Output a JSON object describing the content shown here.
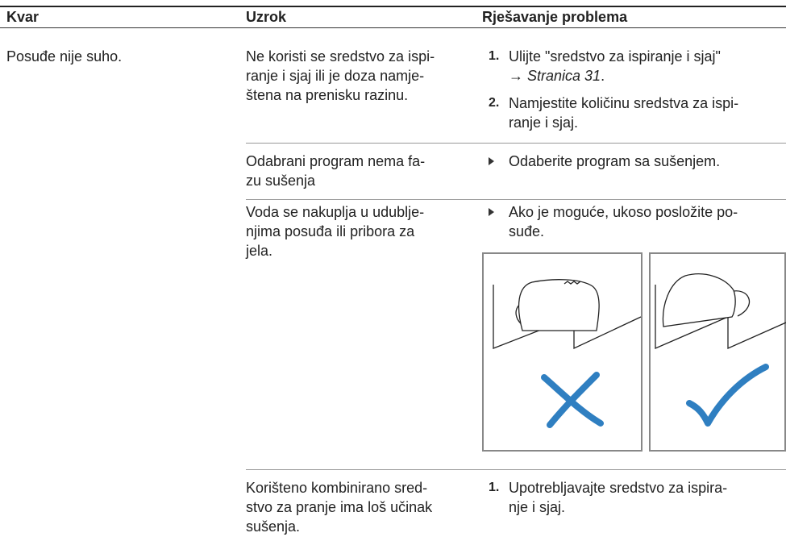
{
  "header": {
    "columns": [
      "Kvar",
      "Uzrok",
      "Rješavanje problema"
    ]
  },
  "table": {
    "rows": [
      {
        "fault": "Posuđe nije suho.",
        "cause": [
          "Ne koristi se sredstvo za ispi-",
          "ranje i sjaj ili je doza namje-",
          "štena na prenisku razinu."
        ],
        "solution": {
          "steps": [
            {
              "number": "1.",
              "lines": [
                "Ulijte \"sredstvo za ispiranje i sjaj\""
              ],
              "reference": {
                "arrow": "→",
                "text": "Stranica 31",
                "end": "."
              }
            },
            {
              "number": "2.",
              "lines": [
                "Namjestite količinu sredstva za ispi-",
                "ranje i sjaj."
              ]
            }
          ]
        }
      },
      {
        "cause": [
          "Odabrani program nema fa-",
          "zu sušenja"
        ],
        "solution": {
          "bullets": [
            {
              "lines": [
                "Odaberite program sa sušenjem."
              ]
            }
          ]
        }
      },
      {
        "cause": [
          "Voda se nakuplja u udublje-",
          "njima posuđa ili pribora za",
          "jela."
        ],
        "solution": {
          "bullets": [
            {
              "lines": [
                "Ako je moguće, ukoso posložite po-",
                "suđe."
              ]
            }
          ]
        }
      },
      {
        "cause": [
          "Korišteno kombinirano sred-",
          "stvo za pranje ima loš učinak",
          "sušenja."
        ],
        "solution": {
          "steps": [
            {
              "number": "1.",
              "lines": [
                "Upotrebljavajte sredstvo za ispira-",
                "nje i sjaj."
              ]
            }
          ]
        }
      }
    ]
  }
}
